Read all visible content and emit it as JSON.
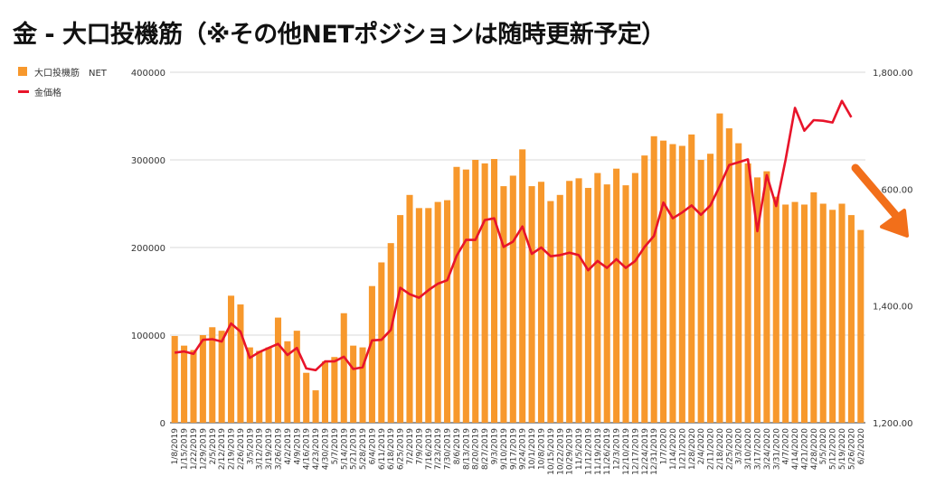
{
  "title": "金 - 大口投機筋（※その他NETポジションは随時更新予定）",
  "legend": {
    "bar_label": "大口投機筋　NET",
    "line_label": "金価格"
  },
  "colors": {
    "bar": "#f7982c",
    "line": "#e8142a",
    "arrow": "#f26f1a",
    "grid": "#d9d9d9"
  },
  "annotation_icon": "down-right-arrow-icon",
  "chart_data": {
    "type": "bar",
    "title": "金 - 大口投機筋（※その他NETポジションは随時更新予定）",
    "xlabel": "",
    "ylabel": "",
    "ylim_left": [
      0,
      400000
    ],
    "ylim_right": [
      1200,
      1800
    ],
    "yticks_left": [
      "0",
      "100000",
      "200000",
      "300000",
      "400000"
    ],
    "yticks_right": [
      "1,200.00",
      "1,400.00",
      "1,600.00",
      "1,800.00"
    ],
    "grid": true,
    "legend_position": "top-left",
    "categories": [
      "1/8/2019",
      "1/15/2019",
      "1/22/2019",
      "1/29/2019",
      "2/5/2019",
      "2/12/2019",
      "2/19/2019",
      "2/26/2019",
      "3/5/2019",
      "3/12/2019",
      "3/19/2019",
      "3/26/2019",
      "4/2/2019",
      "4/9/2019",
      "4/16/2019",
      "4/23/2019",
      "4/30/2019",
      "5/7/2019",
      "5/14/2019",
      "5/21/2019",
      "5/28/2019",
      "6/4/2019",
      "6/11/2019",
      "6/18/2019",
      "6/25/2019",
      "7/2/2019",
      "7/9/2019",
      "7/16/2019",
      "7/23/2019",
      "7/30/2019",
      "8/6/2019",
      "8/13/2019",
      "8/20/2019",
      "8/27/2019",
      "9/3/2019",
      "9/10/2019",
      "9/17/2019",
      "9/24/2019",
      "10/1/2019",
      "10/8/2019",
      "10/15/2019",
      "10/22/2019",
      "10/29/2019",
      "11/5/2019",
      "11/12/2019",
      "11/19/2019",
      "11/26/2019",
      "12/3/2019",
      "12/10/2019",
      "12/17/2019",
      "12/24/2019",
      "12/31/2019",
      "1/7/2020",
      "1/14/2020",
      "1/21/2020",
      "1/28/2020",
      "2/4/2020",
      "2/11/2020",
      "2/18/2020",
      "2/25/2020",
      "3/3/2020",
      "3/10/2020",
      "3/17/2020",
      "3/24/2020",
      "3/31/2020",
      "4/7/2020",
      "4/14/2020",
      "4/21/2020",
      "4/28/2020",
      "5/5/2020",
      "5/12/2020",
      "5/19/2020",
      "5/26/2020",
      "6/2/2020"
    ],
    "xtick_labels": [
      "1/8/2019",
      "1/15/2019",
      "1/22/2019",
      "1/29/2019",
      "2/5/2019",
      "2/12/2019",
      "2/19/2019",
      "2/26/2019",
      "3/5/2019",
      "3/12/2019",
      "3/19/2019",
      "3/26/2019",
      "4/2/2019",
      "4/9/2019",
      "4/16/2019",
      "4/23/2019",
      "4/30/2019",
      "5/7/2019",
      "5/14/2019",
      "5/21/2019",
      "5/28/2019",
      "6/4/2019",
      "6/11/2019",
      "6/18/2019",
      "6/25/2019",
      "7/2/2019",
      "7/9/2019",
      "7/16/2019",
      "7/23/2019",
      "7/30/2019",
      "8/6/2019",
      "8/13/2019",
      "8/20/2019",
      "8/27/2019",
      "9/3/2019",
      "9/10/2019",
      "9/17/2019",
      "9/24/2019",
      "10/1/2019",
      "10/8/2019",
      "10/15/2019",
      "10/22/2019",
      "10/29/2019",
      "11/5/2019",
      "11/12/2019",
      "11/19/2019",
      "11/26/2019",
      "12/3/2019",
      "12/10/2019",
      "12/17/2019",
      "12/24/2019",
      "12/31/2019",
      "1/7/2020",
      "1/14/2020",
      "1/21/2020",
      "1/28/2020",
      "2/4/2020",
      "2/11/2020",
      "2/18/2020",
      "2/25/2020",
      "3/3/2020",
      "3/10/2020",
      "3/17/2020",
      "3/24/2020",
      "3/31/2020",
      "4/7/2020",
      "4/14/2020",
      "4/21/2020",
      "4/28/2020",
      "5/5/2020",
      "5/12/2020",
      "5/19/2020",
      "5/26/2020",
      "6/2/2020"
    ],
    "series": [
      {
        "name": "大口投機筋　NET",
        "type": "bar",
        "axis": "left",
        "values": [
          99000,
          88000,
          83000,
          100000,
          109000,
          105000,
          145000,
          135000,
          86000,
          82000,
          86000,
          120000,
          93000,
          105000,
          57000,
          37000,
          70000,
          75000,
          125000,
          88000,
          86000,
          156000,
          183000,
          205000,
          237000,
          260000,
          245000,
          245000,
          252000,
          254000,
          292000,
          289000,
          300000,
          296000,
          301000,
          270000,
          282000,
          312000,
          270000,
          275000,
          253000,
          260000,
          276000,
          279000,
          268000,
          285000,
          272000,
          290000,
          271000,
          285000,
          305000,
          327000,
          322000,
          318000,
          316000,
          329000,
          300000,
          307000,
          353000,
          336000,
          319000,
          296000,
          280000,
          287000,
          258000,
          249000,
          252000,
          249000,
          263000,
          250000,
          243000,
          250000,
          237000,
          220000
        ]
      },
      {
        "name": "金価格",
        "type": "line",
        "axis": "right",
        "values": [
          1320,
          1322,
          1318,
          1342,
          1343,
          1339,
          1370,
          1356,
          1311,
          1321,
          1328,
          1335,
          1316,
          1328,
          1293,
          1290,
          1305,
          1305,
          1313,
          1292,
          1295,
          1341,
          1342,
          1359,
          1431,
          1420,
          1414,
          1427,
          1438,
          1444,
          1486,
          1513,
          1513,
          1547,
          1550,
          1501,
          1510,
          1536,
          1489,
          1500,
          1485,
          1487,
          1491,
          1487,
          1461,
          1477,
          1465,
          1480,
          1465,
          1477,
          1501,
          1520,
          1577,
          1550,
          1560,
          1572,
          1556,
          1572,
          1605,
          1641,
          1646,
          1651,
          1528,
          1624,
          1571,
          1650,
          1739,
          1700,
          1718,
          1717,
          1714,
          1751,
          1723,
          null
        ]
      }
    ]
  }
}
